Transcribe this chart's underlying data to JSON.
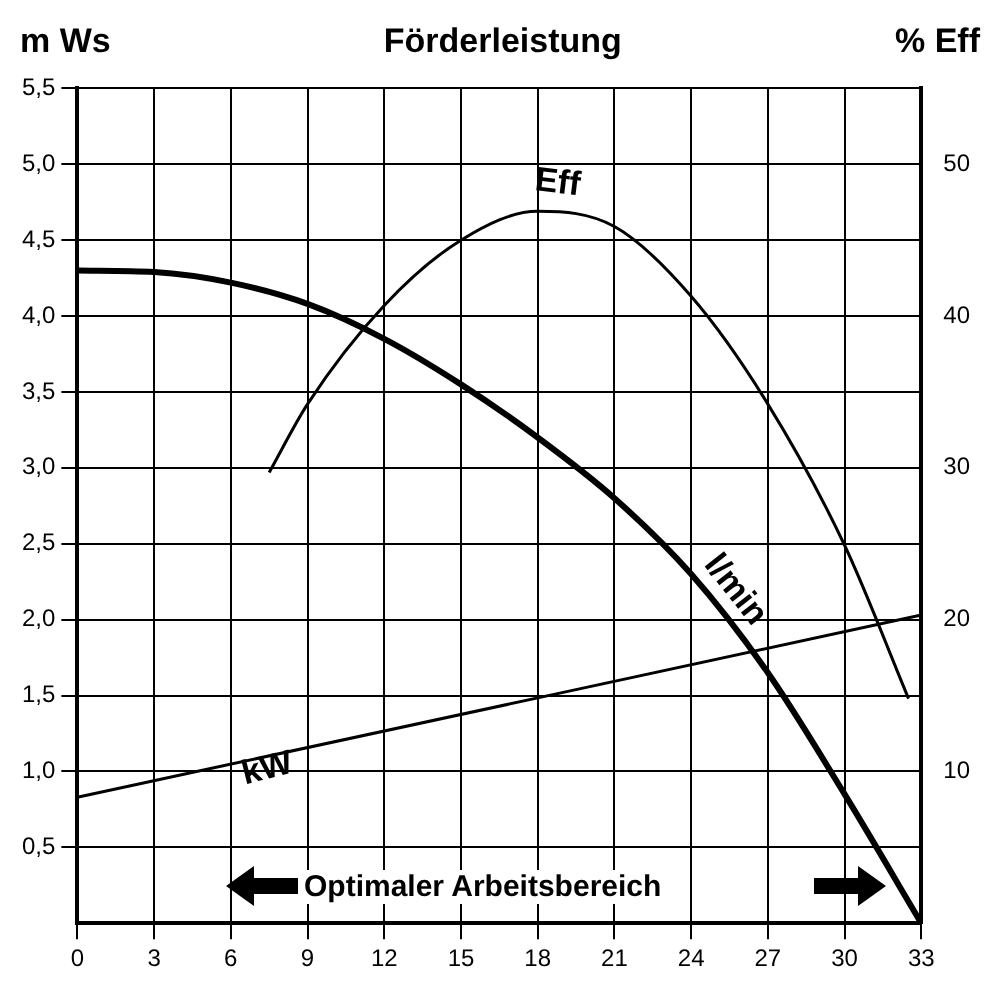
{
  "chart_data": {
    "type": "line",
    "title": "Förderleistung",
    "ylabel": "m Ws",
    "y2label": "% Eff",
    "x": [
      0,
      3,
      6,
      9,
      12,
      15,
      18,
      21,
      24,
      27,
      30,
      33
    ],
    "series": [
      {
        "name": "l/min",
        "color": "#000000",
        "values": [
          4.3,
          4.29,
          4.22,
          4.08,
          3.85,
          3.55,
          3.2,
          2.8,
          2.3,
          1.65,
          0.85,
          0
        ]
      },
      {
        "name": "kW",
        "color": "#000000",
        "x": [
          0,
          33
        ],
        "values": [
          0.83,
          2.03
        ]
      },
      {
        "name": "Eff",
        "color": "#000000",
        "axis": "y2",
        "x": [
          7.5,
          9,
          12,
          15,
          18,
          21,
          24,
          27,
          30,
          32.5
        ],
        "values": [
          29.7,
          34.2,
          40.7,
          45,
          46.9,
          45.9,
          41.3,
          34.2,
          24.9,
          14.8
        ]
      }
    ],
    "xlim": [
      0,
      33
    ],
    "xticks": [
      0,
      3,
      6,
      9,
      12,
      15,
      18,
      21,
      24,
      27,
      30,
      33
    ],
    "ylim": [
      0,
      5.5
    ],
    "yticks": [
      {
        "value": 0.5,
        "label": "0,5"
      },
      {
        "value": 1,
        "label": "1,0"
      },
      {
        "value": 1.5,
        "label": "1,5"
      },
      {
        "value": 2,
        "label": "2,0"
      },
      {
        "value": 2.5,
        "label": "2,5"
      },
      {
        "value": 3,
        "label": "3,0"
      },
      {
        "value": 3.5,
        "label": "3,5"
      },
      {
        "value": 4,
        "label": "4,0"
      },
      {
        "value": 4.5,
        "label": "4,5"
      },
      {
        "value": 5,
        "label": "5,0"
      },
      {
        "value": 5.5,
        "label": "5,5"
      }
    ],
    "y2lim": [
      0,
      55
    ],
    "y2ticks": [
      10,
      20,
      30,
      40,
      50
    ],
    "grid": true,
    "legend": false,
    "marker": "none",
    "line_style": "solid",
    "annotations": [
      "Optimaler Arbeitsbereich"
    ]
  }
}
